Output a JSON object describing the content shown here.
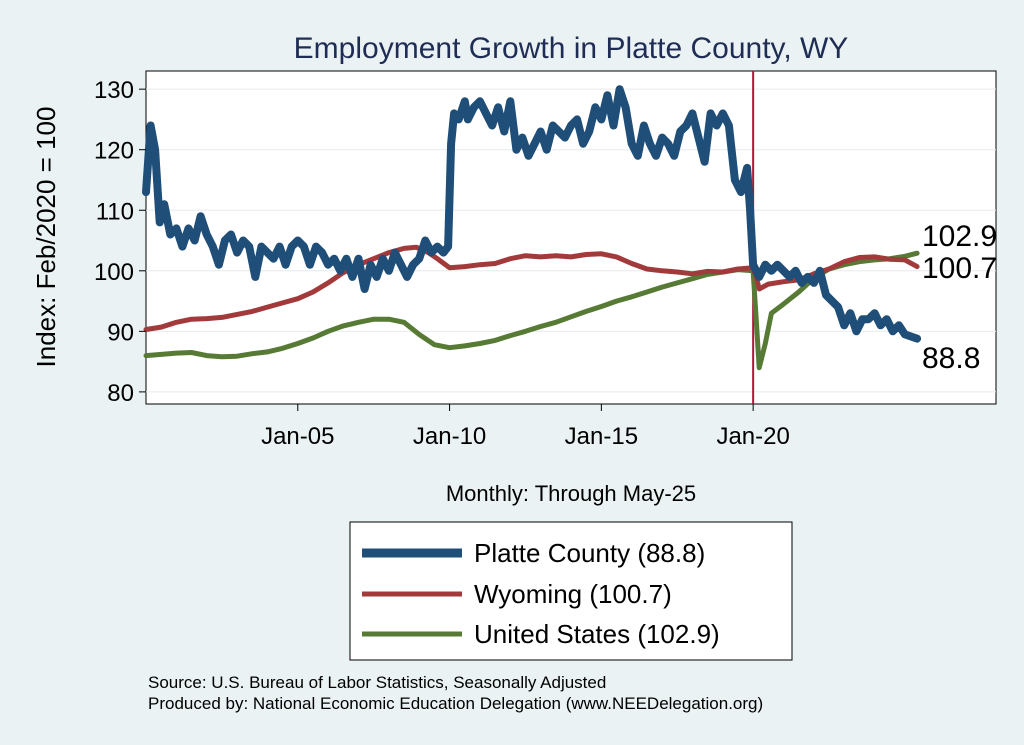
{
  "chart_data": {
    "type": "line",
    "title": "Employment Growth in Platte  County, WY",
    "xlabel": "Monthly: Through May-25",
    "ylabel": "Index: Feb/2020 = 100",
    "ylim": [
      78,
      133
    ],
    "xlim": [
      2000.0,
      2028.0
    ],
    "y_ticks": [
      80,
      90,
      100,
      110,
      120,
      130
    ],
    "x_ticks": [
      {
        "value": 2005.0,
        "label": "Jan-05"
      },
      {
        "value": 2010.0,
        "label": "Jan-10"
      },
      {
        "value": 2015.0,
        "label": "Jan-15"
      },
      {
        "value": 2020.0,
        "label": "Jan-20"
      }
    ],
    "reference_line_x": 2020.0,
    "series": [
      {
        "name": "Platte  County",
        "legend": "Platte  County (88.8)",
        "end_label": "88.8",
        "color": "#1f4e79",
        "points": [
          [
            2000.0,
            113
          ],
          [
            2000.15,
            124
          ],
          [
            2000.3,
            120
          ],
          [
            2000.45,
            108
          ],
          [
            2000.6,
            111
          ],
          [
            2000.8,
            106
          ],
          [
            2001.0,
            107
          ],
          [
            2001.2,
            104
          ],
          [
            2001.4,
            107
          ],
          [
            2001.6,
            105
          ],
          [
            2001.8,
            109
          ],
          [
            2002.0,
            106
          ],
          [
            2002.2,
            104
          ],
          [
            2002.4,
            101
          ],
          [
            2002.6,
            105
          ],
          [
            2002.8,
            106
          ],
          [
            2003.0,
            103
          ],
          [
            2003.2,
            105
          ],
          [
            2003.4,
            104
          ],
          [
            2003.6,
            99
          ],
          [
            2003.8,
            104
          ],
          [
            2004.0,
            103
          ],
          [
            2004.2,
            102
          ],
          [
            2004.4,
            104
          ],
          [
            2004.6,
            101
          ],
          [
            2004.8,
            104
          ],
          [
            2005.0,
            105
          ],
          [
            2005.2,
            104
          ],
          [
            2005.4,
            101
          ],
          [
            2005.6,
            104
          ],
          [
            2005.8,
            103
          ],
          [
            2006.0,
            101
          ],
          [
            2006.2,
            102
          ],
          [
            2006.4,
            100
          ],
          [
            2006.6,
            102
          ],
          [
            2006.8,
            99
          ],
          [
            2007.0,
            102
          ],
          [
            2007.2,
            97
          ],
          [
            2007.4,
            101
          ],
          [
            2007.6,
            99
          ],
          [
            2007.8,
            102
          ],
          [
            2008.0,
            100
          ],
          [
            2008.2,
            103
          ],
          [
            2008.4,
            101
          ],
          [
            2008.6,
            99
          ],
          [
            2008.8,
            101
          ],
          [
            2009.0,
            102
          ],
          [
            2009.2,
            105
          ],
          [
            2009.4,
            103
          ],
          [
            2009.6,
            104
          ],
          [
            2009.8,
            103
          ],
          [
            2009.95,
            104
          ],
          [
            2010.05,
            121
          ],
          [
            2010.15,
            126
          ],
          [
            2010.3,
            125
          ],
          [
            2010.5,
            128
          ],
          [
            2010.6,
            125
          ],
          [
            2010.8,
            127
          ],
          [
            2011.0,
            128
          ],
          [
            2011.2,
            126
          ],
          [
            2011.4,
            124
          ],
          [
            2011.6,
            127
          ],
          [
            2011.8,
            123
          ],
          [
            2012.0,
            128
          ],
          [
            2012.2,
            120
          ],
          [
            2012.4,
            122
          ],
          [
            2012.6,
            119
          ],
          [
            2012.8,
            121
          ],
          [
            2013.0,
            123
          ],
          [
            2013.2,
            120
          ],
          [
            2013.4,
            124
          ],
          [
            2013.6,
            123
          ],
          [
            2013.8,
            122
          ],
          [
            2014.0,
            124
          ],
          [
            2014.2,
            125
          ],
          [
            2014.4,
            121
          ],
          [
            2014.6,
            123
          ],
          [
            2014.8,
            127
          ],
          [
            2015.0,
            125
          ],
          [
            2015.2,
            129
          ],
          [
            2015.4,
            124
          ],
          [
            2015.6,
            130
          ],
          [
            2015.8,
            127
          ],
          [
            2016.0,
            121
          ],
          [
            2016.2,
            119
          ],
          [
            2016.4,
            124
          ],
          [
            2016.6,
            121
          ],
          [
            2016.8,
            119
          ],
          [
            2017.0,
            122
          ],
          [
            2017.2,
            121
          ],
          [
            2017.4,
            119
          ],
          [
            2017.6,
            123
          ],
          [
            2017.8,
            124
          ],
          [
            2018.0,
            126
          ],
          [
            2018.2,
            122
          ],
          [
            2018.4,
            118
          ],
          [
            2018.6,
            126
          ],
          [
            2018.8,
            124
          ],
          [
            2019.0,
            126
          ],
          [
            2019.2,
            124
          ],
          [
            2019.4,
            115
          ],
          [
            2019.6,
            113
          ],
          [
            2019.8,
            117
          ],
          [
            2019.9,
            110
          ],
          [
            2020.0,
            101
          ],
          [
            2020.2,
            99
          ],
          [
            2020.4,
            101
          ],
          [
            2020.6,
            100
          ],
          [
            2020.8,
            101
          ],
          [
            2021.0,
            100
          ],
          [
            2021.2,
            99
          ],
          [
            2021.4,
            100
          ],
          [
            2021.6,
            98
          ],
          [
            2021.8,
            99
          ],
          [
            2022.0,
            98
          ],
          [
            2022.2,
            100
          ],
          [
            2022.4,
            96
          ],
          [
            2022.6,
            95
          ],
          [
            2022.8,
            94
          ],
          [
            2023.0,
            91
          ],
          [
            2023.2,
            93
          ],
          [
            2023.4,
            90
          ],
          [
            2023.6,
            92
          ],
          [
            2023.8,
            92
          ],
          [
            2024.0,
            93
          ],
          [
            2024.2,
            91
          ],
          [
            2024.4,
            92
          ],
          [
            2024.6,
            90
          ],
          [
            2024.8,
            91
          ],
          [
            2025.0,
            89.5
          ],
          [
            2025.4,
            88.8
          ]
        ]
      },
      {
        "name": "Wyoming",
        "legend": "Wyoming (100.7)",
        "end_label": "100.7",
        "color": "#a23a3c",
        "points": [
          [
            2000.0,
            90.3
          ],
          [
            2000.5,
            90.7
          ],
          [
            2001.0,
            91.5
          ],
          [
            2001.5,
            92.0
          ],
          [
            2002.0,
            92.1
          ],
          [
            2002.5,
            92.3
          ],
          [
            2003.0,
            92.8
          ],
          [
            2003.5,
            93.3
          ],
          [
            2004.0,
            94.0
          ],
          [
            2004.5,
            94.7
          ],
          [
            2005.0,
            95.4
          ],
          [
            2005.5,
            96.5
          ],
          [
            2006.0,
            98.0
          ],
          [
            2006.5,
            99.7
          ],
          [
            2007.0,
            101.0
          ],
          [
            2007.5,
            102.0
          ],
          [
            2008.0,
            103.0
          ],
          [
            2008.5,
            103.7
          ],
          [
            2008.9,
            103.9
          ],
          [
            2009.3,
            103.0
          ],
          [
            2009.6,
            102.0
          ],
          [
            2010.0,
            100.5
          ],
          [
            2010.5,
            100.7
          ],
          [
            2011.0,
            101.0
          ],
          [
            2011.5,
            101.2
          ],
          [
            2012.0,
            102.0
          ],
          [
            2012.5,
            102.5
          ],
          [
            2013.0,
            102.3
          ],
          [
            2013.5,
            102.5
          ],
          [
            2014.0,
            102.3
          ],
          [
            2014.5,
            102.7
          ],
          [
            2015.0,
            102.8
          ],
          [
            2015.5,
            102.3
          ],
          [
            2016.0,
            101.2
          ],
          [
            2016.5,
            100.3
          ],
          [
            2017.0,
            100.0
          ],
          [
            2017.5,
            99.8
          ],
          [
            2018.0,
            99.5
          ],
          [
            2018.5,
            99.9
          ],
          [
            2019.0,
            99.8
          ],
          [
            2019.5,
            100.3
          ],
          [
            2020.0,
            100.5
          ],
          [
            2020.1,
            99.0
          ],
          [
            2020.2,
            97.0
          ],
          [
            2020.5,
            97.8
          ],
          [
            2021.0,
            98.2
          ],
          [
            2021.5,
            98.5
          ],
          [
            2022.0,
            99.5
          ],
          [
            2022.5,
            100.3
          ],
          [
            2023.0,
            101.5
          ],
          [
            2023.5,
            102.2
          ],
          [
            2024.0,
            102.3
          ],
          [
            2024.5,
            101.9
          ],
          [
            2025.0,
            101.8
          ],
          [
            2025.4,
            100.7
          ]
        ]
      },
      {
        "name": "United States",
        "legend": "United States (102.9)",
        "end_label": "102.9",
        "color": "#577a35",
        "points": [
          [
            2000.0,
            86.0
          ],
          [
            2000.5,
            86.2
          ],
          [
            2001.0,
            86.4
          ],
          [
            2001.5,
            86.5
          ],
          [
            2002.0,
            86.0
          ],
          [
            2002.5,
            85.8
          ],
          [
            2003.0,
            85.9
          ],
          [
            2003.5,
            86.3
          ],
          [
            2004.0,
            86.6
          ],
          [
            2004.5,
            87.2
          ],
          [
            2005.0,
            88.0
          ],
          [
            2005.5,
            88.9
          ],
          [
            2006.0,
            90.0
          ],
          [
            2006.5,
            90.9
          ],
          [
            2007.0,
            91.5
          ],
          [
            2007.5,
            92.0
          ],
          [
            2008.0,
            92.0
          ],
          [
            2008.5,
            91.5
          ],
          [
            2009.0,
            89.5
          ],
          [
            2009.5,
            87.8
          ],
          [
            2010.0,
            87.3
          ],
          [
            2010.5,
            87.6
          ],
          [
            2011.0,
            88.0
          ],
          [
            2011.5,
            88.5
          ],
          [
            2012.0,
            89.3
          ],
          [
            2012.5,
            90.0
          ],
          [
            2013.0,
            90.8
          ],
          [
            2013.5,
            91.5
          ],
          [
            2014.0,
            92.4
          ],
          [
            2014.5,
            93.3
          ],
          [
            2015.0,
            94.1
          ],
          [
            2015.5,
            95.0
          ],
          [
            2016.0,
            95.7
          ],
          [
            2016.5,
            96.5
          ],
          [
            2017.0,
            97.3
          ],
          [
            2017.5,
            98.0
          ],
          [
            2018.0,
            98.7
          ],
          [
            2018.5,
            99.4
          ],
          [
            2019.0,
            99.8
          ],
          [
            2019.5,
            100.2
          ],
          [
            2020.0,
            100.0
          ],
          [
            2020.1,
            92.0
          ],
          [
            2020.2,
            84.0
          ],
          [
            2020.4,
            88.0
          ],
          [
            2020.6,
            93.0
          ],
          [
            2021.0,
            94.5
          ],
          [
            2021.5,
            96.5
          ],
          [
            2022.0,
            98.8
          ],
          [
            2022.5,
            100.3
          ],
          [
            2023.0,
            101.0
          ],
          [
            2023.5,
            101.5
          ],
          [
            2024.0,
            101.8
          ],
          [
            2024.5,
            102.0
          ],
          [
            2025.0,
            102.4
          ],
          [
            2025.4,
            102.9
          ]
        ]
      }
    ],
    "source_lines": [
      "Source: U.S. Bureau of Labor Statistics, Seasonally Adjusted",
      "Produced by: National Economic Education Delegation (www.NEEDelegation.org)"
    ]
  }
}
